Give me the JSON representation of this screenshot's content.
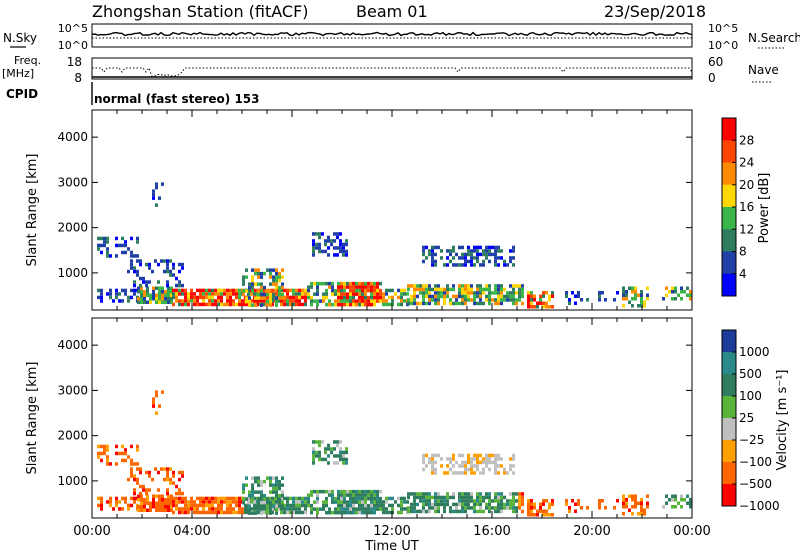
{
  "header": {
    "station": "Zhongshan Station (fitACF)",
    "beam": "Beam 01",
    "date": "23/Sep/2018"
  },
  "control": {
    "nsky_label": "N.Sky",
    "nsearch_label": "N.Search",
    "nave_label": "Nave",
    "cpid_label": "CPID",
    "freq_label": "Freq.",
    "freq_unit": "[MHz]",
    "cpid_text": "normal (fast stereo) 153",
    "noise_ticks": [
      "10^5",
      "10^0"
    ],
    "freq_ticks": [
      "18",
      "8"
    ],
    "nave_ticks": [
      "60",
      "0"
    ],
    "freq_range": [
      8,
      18
    ],
    "nave_range": [
      0,
      60
    ]
  },
  "colors": {
    "power": [
      "#0000ff",
      "#2040a8",
      "#2e7d5e",
      "#39b54a",
      "#ffd700",
      "#ff8c00",
      "#ff4500",
      "#ff0000"
    ],
    "velocity": [
      "#1e3d9a",
      "#2a8a8a",
      "#2e7d5e",
      "#5ab43a",
      "#c0c0c0",
      "#ffa000",
      "#ff6600",
      "#ff0000"
    ]
  },
  "chart_data": [
    {
      "type": "heatmap",
      "name": "power",
      "xlabel": "",
      "ylabel": "Slant Range [km]",
      "xlim": [
        0,
        24
      ],
      "ylim": [
        180,
        4600
      ],
      "yticks": [
        1000,
        2000,
        3000,
        4000
      ],
      "colorbar_label": "Power [dB]",
      "colorbar_ticks": [
        "28",
        "24",
        "20",
        "16",
        "12",
        "8",
        "4"
      ],
      "colorbar_range": [
        0,
        32
      ]
    },
    {
      "type": "heatmap",
      "name": "velocity",
      "xlabel": "Time UT",
      "ylabel": "Slant Range [km]",
      "xlim": [
        0,
        24
      ],
      "ylim": [
        180,
        4600
      ],
      "xticks": [
        "00:00",
        "04:00",
        "08:00",
        "12:00",
        "16:00",
        "20:00",
        "00:00"
      ],
      "yticks": [
        1000,
        2000,
        3000,
        4000
      ],
      "colorbar_label": "Velocity [m s⁻¹]",
      "colorbar_ticks": [
        "1000",
        "500",
        "100",
        "25",
        "−25",
        "−100",
        "−500",
        "−1000"
      ]
    }
  ]
}
